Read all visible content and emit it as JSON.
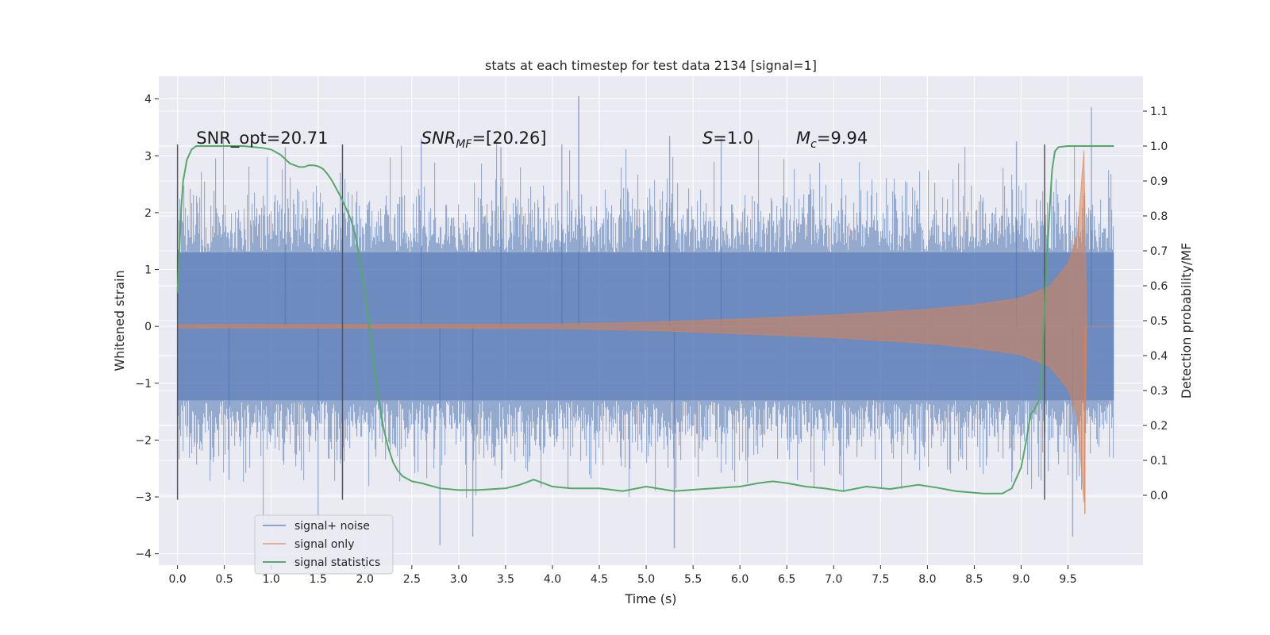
{
  "chart_data": {
    "type": "line",
    "title": "stats at each timestep for test data 2134 [signal=1]",
    "xlabel": "Time (s)",
    "ylabel": "Whitened strain",
    "ylabel_right": "Detection probability/MF",
    "xlim": [
      -0.2,
      10.3
    ],
    "ylim": [
      -4.2,
      4.4
    ],
    "ylim_right": [
      -0.2,
      1.2
    ],
    "x_ticks": [
      "0.0",
      "0.5",
      "1.0",
      "1.5",
      "2.0",
      "2.5",
      "3.0",
      "3.5",
      "4.0",
      "4.5",
      "5.0",
      "5.5",
      "6.0",
      "6.5",
      "7.0",
      "7.5",
      "8.0",
      "8.5",
      "9.0",
      "9.5"
    ],
    "x_tick_values": [
      0.0,
      0.5,
      1.0,
      1.5,
      2.0,
      2.5,
      3.0,
      3.5,
      4.0,
      4.5,
      5.0,
      5.5,
      6.0,
      6.5,
      7.0,
      7.5,
      8.0,
      8.5,
      9.0,
      9.5
    ],
    "y_ticks": [
      "4",
      "3",
      "2",
      "1",
      "0",
      "−1",
      "−2",
      "−3",
      "−4"
    ],
    "y_tick_values": [
      4,
      3,
      2,
      1,
      0,
      -1,
      -2,
      -3,
      -4
    ],
    "y_right_ticks": [
      "1.1",
      "1.0",
      "0.9",
      "0.8",
      "0.7",
      "0.6",
      "0.5",
      "0.4",
      "0.3",
      "0.2",
      "0.1",
      "0.0"
    ],
    "y_right_tick_values": [
      1.1,
      1.0,
      0.9,
      0.8,
      0.7,
      0.6,
      0.5,
      0.4,
      0.3,
      0.2,
      0.1,
      0.0
    ],
    "grid": true,
    "legend_position": "lower-left",
    "series": [
      {
        "name": "signal+ noise",
        "color": "#4c72b0",
        "axis": "left",
        "x_range": [
          0.0,
          9.99
        ],
        "baseline_amplitude": 1.3,
        "peak_max": 4.05,
        "peak_min": -3.9
      },
      {
        "name": "signal only",
        "color": "#dd8452",
        "axis": "left",
        "envelope_x": [
          0.0,
          4.0,
          5.0,
          6.0,
          7.0,
          8.0,
          8.5,
          9.0,
          9.3,
          9.5,
          9.6,
          9.67,
          9.7
        ],
        "envelope_y": [
          0.03,
          0.04,
          0.07,
          0.13,
          0.2,
          0.3,
          0.38,
          0.5,
          0.7,
          1.1,
          1.6,
          3.1,
          0.0
        ],
        "min_value": -3.3
      },
      {
        "name": "signal statistics",
        "color": "#55a868",
        "axis": "right",
        "x": [
          0.0,
          0.02,
          0.04,
          0.06,
          0.08,
          0.1,
          0.15,
          0.2,
          0.3,
          0.5,
          0.7,
          0.9,
          1.0,
          1.1,
          1.2,
          1.3,
          1.35,
          1.4,
          1.45,
          1.5,
          1.55,
          1.6,
          1.65,
          1.7,
          1.75,
          1.8,
          1.85,
          1.9,
          1.95,
          2.0,
          2.05,
          2.1,
          2.15,
          2.2,
          2.25,
          2.3,
          2.35,
          2.4,
          2.5,
          2.6,
          2.8,
          3.0,
          3.2,
          3.5,
          3.65,
          3.8,
          4.0,
          4.2,
          4.5,
          4.75,
          5.0,
          5.3,
          5.6,
          6.0,
          6.2,
          6.35,
          6.5,
          6.7,
          6.9,
          7.1,
          7.35,
          7.6,
          7.9,
          8.1,
          8.3,
          8.6,
          8.8,
          8.9,
          9.0,
          9.05,
          9.1,
          9.15,
          9.2,
          9.23,
          9.26,
          9.3,
          9.33,
          9.36,
          9.4,
          9.5,
          9.8,
          9.99
        ],
        "y": [
          0.58,
          0.7,
          0.82,
          0.9,
          0.93,
          0.96,
          0.99,
          1.0,
          1.0,
          1.0,
          1.0,
          0.995,
          0.99,
          0.975,
          0.95,
          0.94,
          0.94,
          0.945,
          0.945,
          0.942,
          0.935,
          0.92,
          0.9,
          0.875,
          0.85,
          0.82,
          0.79,
          0.74,
          0.67,
          0.58,
          0.48,
          0.37,
          0.27,
          0.19,
          0.135,
          0.095,
          0.07,
          0.055,
          0.04,
          0.035,
          0.02,
          0.015,
          0.015,
          0.02,
          0.03,
          0.045,
          0.025,
          0.02,
          0.02,
          0.012,
          0.025,
          0.012,
          0.018,
          0.025,
          0.035,
          0.04,
          0.035,
          0.025,
          0.02,
          0.012,
          0.025,
          0.018,
          0.03,
          0.022,
          0.012,
          0.005,
          0.005,
          0.02,
          0.08,
          0.15,
          0.23,
          0.25,
          0.28,
          0.4,
          0.6,
          0.8,
          0.93,
          0.985,
          0.997,
          1.0,
          1.0,
          1.0
        ]
      }
    ],
    "vertical_lines": [
      {
        "x": 0.0,
        "ymin": -3.05,
        "ymax": 3.2
      },
      {
        "x": 1.76,
        "ymin": -3.05,
        "ymax": 3.2
      },
      {
        "x": 9.25,
        "ymin": -3.05,
        "ymax": 3.2
      }
    ],
    "annotations": [
      {
        "key": "snr_opt",
        "text": "SNR_opt=20.71",
        "x": 0.2,
        "y": 3.2
      },
      {
        "key": "snr_mf",
        "x": 2.6,
        "y": 3.2,
        "parts": [
          "SNR",
          "MF",
          "=[20.26]"
        ]
      },
      {
        "key": "s",
        "x": 5.6,
        "y": 3.2,
        "parts": [
          "S",
          "=1.0"
        ]
      },
      {
        "key": "mc",
        "x": 6.6,
        "y": 3.2,
        "parts": [
          "M",
          "c",
          "=9.94"
        ]
      }
    ]
  }
}
